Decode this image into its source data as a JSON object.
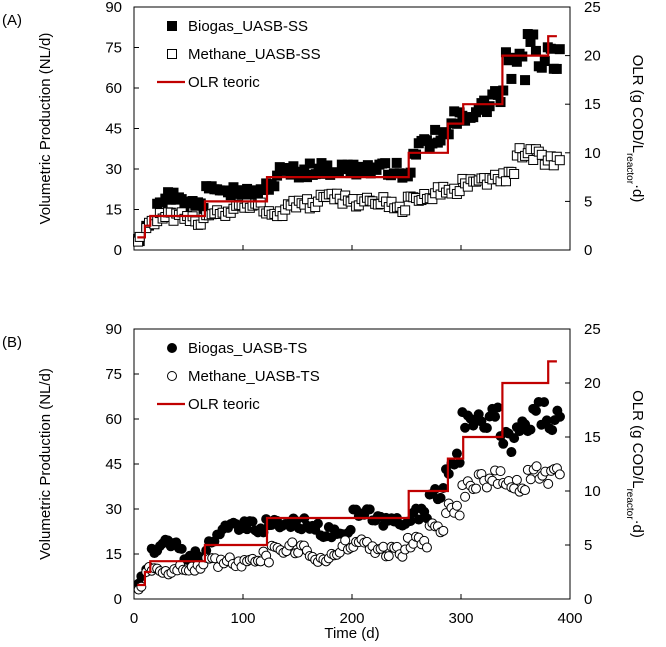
{
  "chart_data": [
    {
      "type": "scatter",
      "panel_label": "(A)",
      "xlabel": "",
      "ylabel": "Volumetric Production  (NL/d)",
      "y2label_prefix": "OLR (g COD/L",
      "y2label_sub": "reactor",
      "y2label_suffix": "·d)",
      "xlim": [
        0,
        400
      ],
      "ylim": [
        0,
        90
      ],
      "y2lim": [
        0,
        25
      ],
      "xticks": [
        "0",
        "100",
        "200",
        "300",
        "400"
      ],
      "yticks": [
        "0",
        "15",
        "30",
        "45",
        "60",
        "75",
        "90"
      ],
      "y2ticks": [
        "0",
        "5",
        "10",
        "15",
        "20",
        "25"
      ],
      "legend_position": "top-left",
      "series": [
        {
          "name": "Biogas_UASB-SS",
          "marker": "filled-square",
          "segments": [
            [
              3,
              6,
              5
            ],
            [
              10,
              15,
              10
            ],
            [
              20,
              30,
              19
            ],
            [
              30,
              45,
              20
            ],
            [
              45,
              65,
              17
            ],
            [
              65,
              85,
              24
            ],
            [
              85,
              100,
              22
            ],
            [
              100,
              120,
              21
            ],
            [
              120,
              130,
              24
            ],
            [
              130,
              160,
              29
            ],
            [
              160,
              200,
              30
            ],
            [
              200,
              245,
              30
            ],
            [
              245,
              255,
              27
            ],
            [
              255,
              275,
              38
            ],
            [
              275,
              290,
              42
            ],
            [
              290,
              305,
              48
            ],
            [
              305,
              325,
              52
            ],
            [
              325,
              340,
              57
            ],
            [
              340,
              360,
              68
            ],
            [
              360,
              370,
              75
            ],
            [
              370,
              392,
              72
            ]
          ]
        },
        {
          "name": "Methane_UASB-SS",
          "marker": "open-square",
          "segments": [
            [
              3,
              6,
              4
            ],
            [
              10,
              20,
              10
            ],
            [
              20,
              45,
              12
            ],
            [
              45,
              65,
              11
            ],
            [
              65,
              90,
              14
            ],
            [
              90,
              120,
              16
            ],
            [
              120,
              140,
              14
            ],
            [
              140,
              170,
              17
            ],
            [
              170,
              200,
              19
            ],
            [
              200,
              230,
              18
            ],
            [
              230,
              250,
              16
            ],
            [
              250,
              275,
              19
            ],
            [
              275,
              300,
              22
            ],
            [
              300,
              330,
              25
            ],
            [
              330,
              350,
              27
            ],
            [
              350,
              370,
              35
            ],
            [
              370,
              392,
              34
            ]
          ]
        },
        {
          "name": "OLR teoric",
          "type": "step-line",
          "axis": "right",
          "points": [
            [
              3,
              1.3
            ],
            [
              10,
              1.3
            ],
            [
              10,
              2.5
            ],
            [
              15,
              2.5
            ],
            [
              15,
              3.5
            ],
            [
              65,
              3.5
            ],
            [
              65,
              5
            ],
            [
              122,
              5
            ],
            [
              122,
              7.5
            ],
            [
              252,
              7.5
            ],
            [
              252,
              10
            ],
            [
              288,
              10
            ],
            [
              288,
              13
            ],
            [
              302,
              13
            ],
            [
              302,
              15
            ],
            [
              338,
              15
            ],
            [
              338,
              20
            ],
            [
              380,
              20
            ],
            [
              380,
              22
            ],
            [
              388,
              22
            ]
          ]
        }
      ]
    },
    {
      "type": "scatter",
      "panel_label": "(B)",
      "xlabel": "Time (d)",
      "ylabel": "Volumetric Production  (NL/d)",
      "y2label_prefix": "OLR (g COD/L",
      "y2label_sub": "reactor",
      "y2label_suffix": "·d)",
      "xlim": [
        0,
        400
      ],
      "ylim": [
        0,
        90
      ],
      "y2lim": [
        0,
        25
      ],
      "xticks": [
        "0",
        "100",
        "200",
        "300",
        "400"
      ],
      "yticks": [
        "0",
        "15",
        "30",
        "45",
        "60",
        "75",
        "90"
      ],
      "y2ticks": [
        "0",
        "5",
        "10",
        "15",
        "20",
        "25"
      ],
      "legend_position": "top-left",
      "series": [
        {
          "name": "Biogas_UASB-TS",
          "marker": "filled-circle",
          "segments": [
            [
              3,
              8,
              6
            ],
            [
              10,
              15,
              10
            ],
            [
              15,
              25,
              16
            ],
            [
              25,
              45,
              18
            ],
            [
              45,
              65,
              14
            ],
            [
              65,
              75,
              18
            ],
            [
              75,
              90,
              23
            ],
            [
              90,
              120,
              24
            ],
            [
              120,
              140,
              25
            ],
            [
              140,
              170,
              25
            ],
            [
              170,
              200,
              22
            ],
            [
              200,
              220,
              28
            ],
            [
              220,
              250,
              26
            ],
            [
              250,
              270,
              28
            ],
            [
              270,
              285,
              36
            ],
            [
              285,
              300,
              45
            ],
            [
              300,
              310,
              58
            ],
            [
              310,
              320,
              62
            ],
            [
              320,
              335,
              60
            ],
            [
              335,
              350,
              53
            ],
            [
              350,
              365,
              56
            ],
            [
              365,
              380,
              62
            ],
            [
              380,
              392,
              60
            ]
          ]
        },
        {
          "name": "Methane_UASB-TS",
          "marker": "open-circle",
          "segments": [
            [
              3,
              8,
              4
            ],
            [
              10,
              25,
              10
            ],
            [
              25,
              65,
              10
            ],
            [
              65,
              100,
              12
            ],
            [
              100,
              125,
              14
            ],
            [
              125,
              160,
              17
            ],
            [
              160,
              190,
              14
            ],
            [
              190,
              220,
              18
            ],
            [
              220,
              250,
              16
            ],
            [
              250,
              270,
              19
            ],
            [
              270,
              285,
              24
            ],
            [
              285,
              300,
              30
            ],
            [
              300,
              315,
              37
            ],
            [
              315,
              340,
              40
            ],
            [
              340,
              360,
              38
            ],
            [
              360,
              392,
              41
            ]
          ]
        },
        {
          "name": "OLR teoric",
          "type": "step-line",
          "axis": "right",
          "points": [
            [
              3,
              1.3
            ],
            [
              10,
              1.3
            ],
            [
              10,
              2.5
            ],
            [
              15,
              2.5
            ],
            [
              15,
              3.5
            ],
            [
              65,
              3.5
            ],
            [
              65,
              5
            ],
            [
              122,
              5
            ],
            [
              122,
              7.5
            ],
            [
              252,
              7.5
            ],
            [
              252,
              10
            ],
            [
              288,
              10
            ],
            [
              288,
              13
            ],
            [
              302,
              13
            ],
            [
              302,
              15
            ],
            [
              338,
              15
            ],
            [
              338,
              20
            ],
            [
              380,
              20
            ],
            [
              380,
              22
            ],
            [
              388,
              22
            ]
          ]
        }
      ]
    }
  ],
  "colors": {
    "olr_line": "#c00000",
    "marker": "#000000",
    "open_fill": "#ffffff"
  }
}
